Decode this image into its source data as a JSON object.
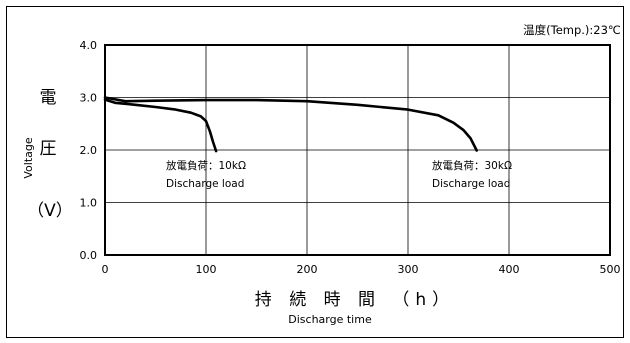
{
  "chart_data": {
    "type": "line",
    "annotation_top": "温度(Temp.):23℃",
    "ylabel_jp": [
      "電",
      "圧",
      "（V）"
    ],
    "ylabel_en": "Voltage",
    "xlabel_jp": "持 続 時 間 （h）",
    "xlabel_en": "Discharge time",
    "xlim": [
      0,
      500
    ],
    "ylim": [
      0.0,
      4.0
    ],
    "x_ticks": [
      "0",
      "100",
      "200",
      "300",
      "400",
      "500"
    ],
    "y_ticks": [
      "0.0",
      "1.0",
      "2.0",
      "3.0",
      "4.0"
    ],
    "grid": true,
    "series": [
      {
        "load_label": "放電負荷：10kΩ",
        "load_label_en": "Discharge load",
        "x": [
          0,
          10,
          30,
          50,
          70,
          85,
          95,
          100,
          104,
          107,
          110
        ],
        "y": [
          2.96,
          2.9,
          2.86,
          2.82,
          2.77,
          2.71,
          2.64,
          2.55,
          2.35,
          2.15,
          1.98
        ]
      },
      {
        "load_label": "放電負荷：30kΩ",
        "load_label_en": "Discharge load",
        "x": [
          0,
          20,
          50,
          100,
          150,
          200,
          250,
          300,
          330,
          345,
          355,
          362,
          368
        ],
        "y": [
          3.0,
          2.93,
          2.94,
          2.95,
          2.95,
          2.93,
          2.86,
          2.77,
          2.66,
          2.52,
          2.38,
          2.22,
          1.99
        ]
      }
    ]
  }
}
